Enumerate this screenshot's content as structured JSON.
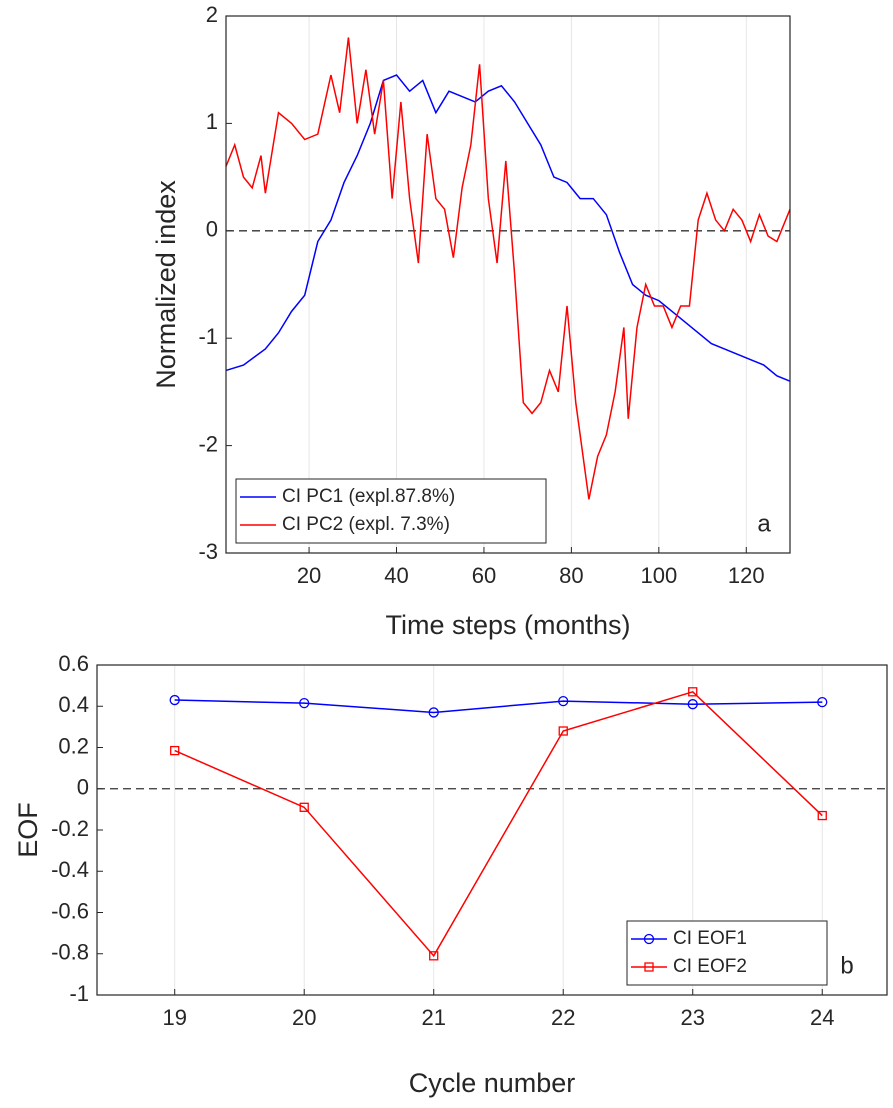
{
  "chart_data": [
    {
      "type": "line",
      "ylabel": "Normalized index",
      "xlabel": "Time steps (months)",
      "annotation": "a",
      "xlim": [
        1,
        130
      ],
      "ylim": [
        -3,
        2
      ],
      "xticks": [
        20,
        40,
        60,
        80,
        100,
        120
      ],
      "yticks": [
        -3,
        -2,
        -1,
        0,
        1,
        2
      ],
      "grid": "x",
      "hline": 0,
      "legend": "lower left",
      "series": [
        {
          "name": "CI PC1 (expl.87.8%)",
          "color": "#0000ff",
          "x": [
            1,
            5,
            10,
            13,
            16,
            19,
            22,
            25,
            28,
            31,
            34,
            37,
            40,
            43,
            46,
            49,
            52,
            55,
            58,
            61,
            64,
            67,
            70,
            73,
            76,
            79,
            82,
            85,
            88,
            91,
            94,
            97,
            100,
            103,
            106,
            109,
            112,
            115,
            118,
            121,
            124,
            127,
            130
          ],
          "values": [
            -1.3,
            -1.25,
            -1.1,
            -0.95,
            -0.75,
            -0.6,
            -0.1,
            0.1,
            0.45,
            0.7,
            1.0,
            1.4,
            1.45,
            1.3,
            1.4,
            1.1,
            1.3,
            1.25,
            1.2,
            1.3,
            1.35,
            1.2,
            1.0,
            0.8,
            0.5,
            0.45,
            0.3,
            0.3,
            0.15,
            -0.2,
            -0.5,
            -0.6,
            -0.65,
            -0.75,
            -0.85,
            -0.95,
            -1.05,
            -1.1,
            -1.15,
            -1.2,
            -1.25,
            -1.35,
            -1.4
          ]
        },
        {
          "name": "CI PC2 (expl. 7.3%)",
          "color": "#ff0000",
          "x": [
            1,
            3,
            5,
            7,
            9,
            10,
            13,
            16,
            19,
            22,
            25,
            27,
            29,
            31,
            33,
            35,
            37,
            39,
            41,
            43,
            45,
            47,
            49,
            51,
            53,
            55,
            57,
            59,
            61,
            63,
            65,
            67,
            69,
            71,
            73,
            75,
            77,
            79,
            81,
            84,
            86,
            88,
            90,
            92,
            93,
            95,
            97,
            99,
            101,
            103,
            105,
            107,
            109,
            111,
            113,
            115,
            117,
            119,
            121,
            123,
            125,
            127,
            129,
            130
          ],
          "values": [
            0.6,
            0.8,
            0.5,
            0.4,
            0.7,
            0.35,
            1.1,
            1.0,
            0.85,
            0.9,
            1.45,
            1.1,
            1.8,
            1.0,
            1.5,
            0.9,
            1.4,
            0.3,
            1.2,
            0.3,
            -0.3,
            0.9,
            0.3,
            0.2,
            -0.25,
            0.4,
            0.8,
            1.55,
            0.3,
            -0.3,
            0.65,
            -0.4,
            -1.6,
            -1.7,
            -1.6,
            -1.3,
            -1.5,
            -0.7,
            -1.6,
            -2.5,
            -2.1,
            -1.9,
            -1.5,
            -0.9,
            -1.75,
            -0.9,
            -0.5,
            -0.7,
            -0.7,
            -0.9,
            -0.7,
            -0.7,
            0.1,
            0.35,
            0.1,
            0.0,
            0.2,
            0.1,
            -0.1,
            0.15,
            -0.05,
            -0.1,
            0.1,
            0.2
          ]
        }
      ]
    },
    {
      "type": "line",
      "ylabel": "EOF",
      "xlabel": "Cycle number",
      "annotation": "b",
      "xlim": [
        18.4,
        24.5
      ],
      "ylim": [
        -1,
        0.6
      ],
      "xticks": [
        19,
        20,
        21,
        22,
        23,
        24
      ],
      "yticks": [
        -1,
        -0.8,
        -0.6,
        -0.4,
        -0.2,
        0,
        0.2,
        0.4,
        0.6
      ],
      "grid": "x",
      "hline": 0,
      "legend": "lower right",
      "series": [
        {
          "name": "CI EOF1",
          "color": "#0000ff",
          "marker": "o",
          "x": [
            19,
            20,
            21,
            22,
            23,
            24
          ],
          "values": [
            0.43,
            0.415,
            0.37,
            0.425,
            0.41,
            0.42
          ]
        },
        {
          "name": "CI EOF2",
          "color": "#ff0000",
          "marker": "s",
          "x": [
            19,
            20,
            21,
            22,
            23,
            24
          ],
          "values": [
            0.185,
            -0.09,
            -0.81,
            0.28,
            0.47,
            -0.13
          ]
        }
      ]
    }
  ]
}
